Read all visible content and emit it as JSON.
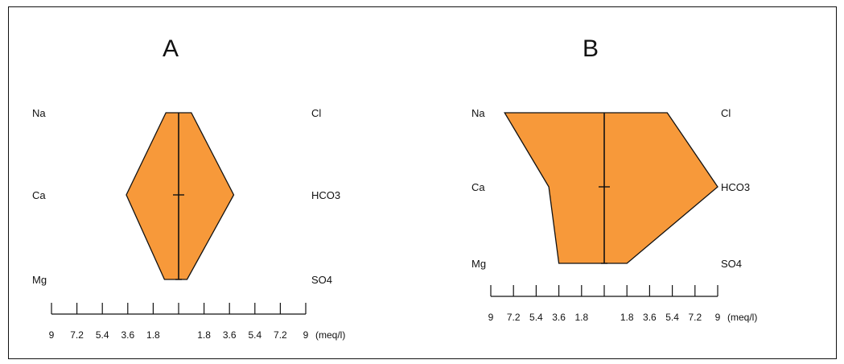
{
  "chart_data": [
    {
      "type": "stiff",
      "title": "A",
      "left_ions": [
        "Na",
        "Ca",
        "Mg"
      ],
      "right_ions": [
        "Cl",
        "HCO3",
        "SO4"
      ],
      "cations": [
        0.9,
        3.7,
        1.0
      ],
      "anions": [
        0.9,
        3.9,
        0.6
      ],
      "x_scale_max": 9,
      "tick_labels": [
        "9",
        "7.2",
        "5.4",
        "3.6",
        "1.8",
        "",
        "1.8",
        "3.6",
        "5.4",
        "7.2",
        "9"
      ],
      "unit": "(meq/l)",
      "fill_color": "#f7993a"
    },
    {
      "type": "stiff",
      "title": "B",
      "left_ions": [
        "Na",
        "Ca",
        "Mg"
      ],
      "right_ions": [
        "Cl",
        "HCO3",
        "SO4"
      ],
      "cations": [
        7.9,
        4.4,
        3.6
      ],
      "anions": [
        5.0,
        9.0,
        1.8
      ],
      "x_scale_max": 9,
      "tick_labels": [
        "9",
        "7.2",
        "5.4",
        "3.6",
        "1.8",
        "",
        "1.8",
        "3.6",
        "5.4",
        "7.2",
        "9"
      ],
      "unit": "(meq/l)",
      "fill_color": "#f7993a"
    }
  ]
}
